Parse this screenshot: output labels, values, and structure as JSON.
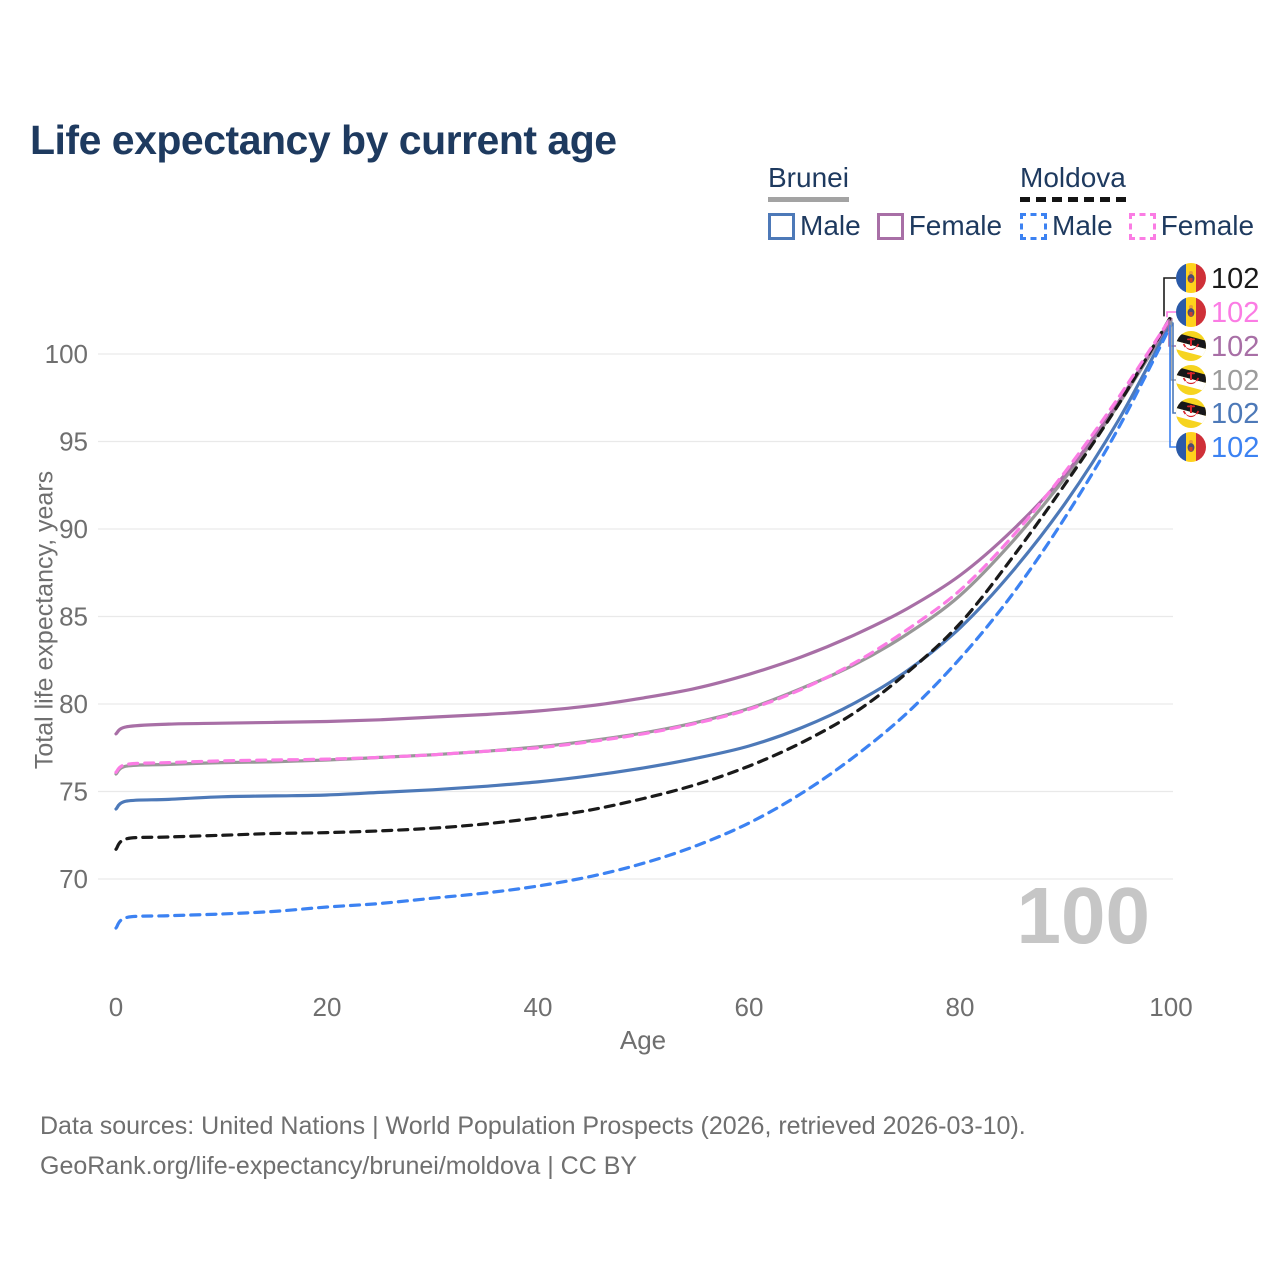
{
  "title": "Life expectancy by current age",
  "watermark": "100",
  "footer": {
    "line1": "Data sources: United Nations | World Population Prospects (2026, retrieved 2026-03-10).",
    "line2": "GeoRank.org/life-expectancy/brunei/moldova | CC BY"
  },
  "legend": {
    "brunei": {
      "country": "Brunei",
      "male_label": "Male",
      "female_label": "Female",
      "male_color": "#4d79b8",
      "female_color": "#a86fa6",
      "underline_color": "#a3a3a3"
    },
    "moldova": {
      "country": "Moldova",
      "male_label": "Male",
      "female_label": "Female",
      "male_color": "#3c82f2",
      "female_color": "#fb7ce4",
      "underline_color": "#141414"
    }
  },
  "colors": {
    "title_text": "#1e3a5f",
    "axis_text": "#6f6f6f",
    "gridline": "#e9e9e9",
    "watermark": "#c6c6c6"
  },
  "chart_data": {
    "type": "line",
    "title": "Life expectancy by current age",
    "xlabel": "Age",
    "ylabel": "Total life expectancy, years",
    "xlim": [
      0,
      100
    ],
    "ylim": [
      66,
      103
    ],
    "xticks": [
      0,
      20,
      40,
      60,
      80,
      100
    ],
    "yticks": [
      70,
      75,
      80,
      85,
      90,
      95,
      100
    ],
    "grid": "horizontal",
    "legend_position": "top-right",
    "x": [
      0,
      1,
      5,
      10,
      15,
      20,
      25,
      30,
      35,
      40,
      45,
      50,
      55,
      60,
      65,
      70,
      75,
      80,
      85,
      90,
      95,
      100
    ],
    "series": [
      {
        "name": "Moldova",
        "sex": "total",
        "country": "moldova",
        "color": "#1a1a1a",
        "dashed": true,
        "end_label": "102",
        "label_color": "#1a1a1a",
        "values": [
          71.7,
          72.3,
          72.4,
          72.5,
          72.6,
          72.65,
          72.75,
          72.9,
          73.15,
          73.5,
          73.95,
          74.6,
          75.4,
          76.45,
          77.8,
          79.5,
          81.8,
          84.6,
          88.4,
          92.6,
          97.1,
          102.15
        ]
      },
      {
        "name": "Moldova Female",
        "sex": "female",
        "country": "moldova",
        "color": "#fb7ce4",
        "dashed": true,
        "end_label": "102",
        "label_color": "#fb7ce4",
        "values": [
          76.1,
          76.55,
          76.65,
          76.75,
          76.8,
          76.85,
          76.95,
          77.1,
          77.3,
          77.5,
          77.85,
          78.3,
          78.9,
          79.7,
          80.85,
          82.35,
          84.25,
          86.5,
          89.6,
          93.3,
          97.5,
          102.1
        ]
      },
      {
        "name": "Brunei Female",
        "sex": "female",
        "country": "brunei",
        "color": "#a86fa6",
        "dashed": false,
        "end_label": "102",
        "label_color": "#a86fa6",
        "values": [
          78.3,
          78.7,
          78.85,
          78.9,
          78.95,
          79.0,
          79.1,
          79.25,
          79.4,
          79.6,
          79.9,
          80.35,
          80.9,
          81.7,
          82.7,
          83.95,
          85.45,
          87.35,
          89.95,
          93.15,
          97.25,
          102.0
        ]
      },
      {
        "name": "Brunei",
        "sex": "total",
        "country": "brunei",
        "color": "#989898",
        "dashed": false,
        "end_label": "102",
        "label_color": "#9c9c9c",
        "values": [
          76.0,
          76.45,
          76.55,
          76.65,
          76.7,
          76.8,
          76.95,
          77.1,
          77.3,
          77.55,
          77.9,
          78.35,
          78.95,
          79.75,
          80.9,
          82.25,
          84.0,
          86.2,
          89.3,
          92.95,
          97.1,
          101.9
        ]
      },
      {
        "name": "Brunei Male",
        "sex": "male",
        "country": "brunei",
        "color": "#4d79b8",
        "dashed": false,
        "end_label": "102",
        "label_color": "#4d79b8",
        "values": [
          74.0,
          74.45,
          74.55,
          74.7,
          74.75,
          74.8,
          74.95,
          75.1,
          75.3,
          75.55,
          75.9,
          76.35,
          76.9,
          77.6,
          78.65,
          80.05,
          81.9,
          84.35,
          87.6,
          91.5,
          96.2,
          101.8
        ]
      },
      {
        "name": "Moldova Male",
        "sex": "male",
        "country": "moldova",
        "color": "#3c82f2",
        "dashed": true,
        "end_label": "102",
        "label_color": "#3c82f2",
        "values": [
          67.2,
          67.8,
          67.9,
          68.0,
          68.15,
          68.4,
          68.6,
          68.9,
          69.2,
          69.6,
          70.15,
          70.9,
          71.9,
          73.2,
          74.9,
          77.0,
          79.5,
          82.6,
          86.3,
          90.7,
          95.75,
          101.65
        ]
      }
    ]
  }
}
